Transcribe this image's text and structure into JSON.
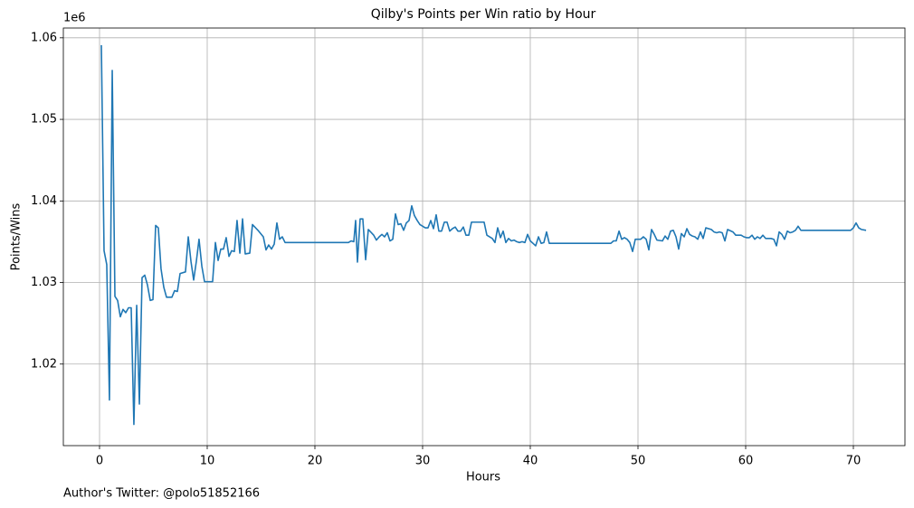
{
  "chart_data": {
    "type": "line",
    "title": "Qilby's Points per Win ratio by Hour",
    "xlabel": "Hours",
    "ylabel": "Points/Wins",
    "y_offset_label": "1e6",
    "annotation": "Author's Twitter: @polo51852166",
    "xlim": [
      -3.36,
      74.79
    ],
    "ylim": [
      1.01,
      1.0612
    ],
    "xticks": [
      0,
      10,
      20,
      30,
      40,
      50,
      60,
      70
    ],
    "yticks": [
      1.02,
      1.03,
      1.04,
      1.05,
      1.06
    ],
    "grid": true,
    "x": [
      0.17,
      0.42,
      0.67,
      0.92,
      1.18,
      1.43,
      1.68,
      1.93,
      2.18,
      2.44,
      2.69,
      2.94,
      3.19,
      3.45,
      3.7,
      3.95,
      4.2,
      4.45,
      4.71,
      4.96,
      5.21,
      5.46,
      5.71,
      5.97,
      6.22,
      6.72,
      6.97,
      7.23,
      7.48,
      7.98,
      8.24,
      8.49,
      8.74,
      8.99,
      9.24,
      9.5,
      9.75,
      10.5,
      10.76,
      11.01,
      11.26,
      11.51,
      11.76,
      12.02,
      12.27,
      12.52,
      12.77,
      13.03,
      13.28,
      13.53,
      13.95,
      14.2,
      14.71,
      15.21,
      15.46,
      15.71,
      15.97,
      16.22,
      16.47,
      16.72,
      16.97,
      17.23,
      23.11,
      23.36,
      23.61,
      23.78,
      23.95,
      24.2,
      24.45,
      24.71,
      24.96,
      25.46,
      25.71,
      25.97,
      26.22,
      26.47,
      26.72,
      26.97,
      27.23,
      27.48,
      27.73,
      27.98,
      28.24,
      28.49,
      28.74,
      28.99,
      29.24,
      29.5,
      29.75,
      30.25,
      30.5,
      30.76,
      31.01,
      31.26,
      31.51,
      31.76,
      32.02,
      32.27,
      32.52,
      32.77,
      33.03,
      33.28,
      33.53,
      33.78,
      34.03,
      34.29,
      34.54,
      35.71,
      35.97,
      36.47,
      36.72,
      36.97,
      37.23,
      37.48,
      37.73,
      37.98,
      38.24,
      38.49,
      38.74,
      38.99,
      39.24,
      39.5,
      39.75,
      40.0,
      40.25,
      40.5,
      40.76,
      41.01,
      41.26,
      41.51,
      41.76,
      47.48,
      47.73,
      47.98,
      48.24,
      48.49,
      48.74,
      48.99,
      49.24,
      49.5,
      49.75,
      50.25,
      50.5,
      50.76,
      51.01,
      51.26,
      51.51,
      51.76,
      52.27,
      52.52,
      52.77,
      53.03,
      53.28,
      53.53,
      53.78,
      54.03,
      54.29,
      54.54,
      54.79,
      55.04,
      55.29,
      55.55,
      55.8,
      56.05,
      56.3,
      56.81,
      57.06,
      57.31,
      57.56,
      57.82,
      58.07,
      58.32,
      58.82,
      59.08,
      59.58,
      59.83,
      60.08,
      60.34,
      60.59,
      60.84,
      61.09,
      61.34,
      61.6,
      61.85,
      62.35,
      62.61,
      62.86,
      63.11,
      63.36,
      63.61,
      63.87,
      64.12,
      64.37,
      64.62,
      64.87,
      65.13,
      69.75,
      70.0,
      70.25,
      70.5,
      70.76,
      71.18
    ],
    "series": [
      {
        "color": "#1f77b4",
        "values": [
          1.0591,
          1.0339,
          1.0322,
          1.0156,
          1.056,
          1.0283,
          1.0278,
          1.0258,
          1.0267,
          1.0263,
          1.0269,
          1.0269,
          1.0126,
          1.0272,
          1.0151,
          1.0306,
          1.0309,
          1.0297,
          1.0278,
          1.0279,
          1.037,
          1.0367,
          1.0317,
          1.0294,
          1.0282,
          1.0282,
          1.029,
          1.0289,
          1.0311,
          1.0313,
          1.0356,
          1.0326,
          1.0303,
          1.0326,
          1.0353,
          1.032,
          1.0301,
          1.0301,
          1.0349,
          1.0327,
          1.0341,
          1.0341,
          1.0355,
          1.0332,
          1.0339,
          1.0338,
          1.0376,
          1.0336,
          1.0378,
          1.0335,
          1.0336,
          1.0371,
          1.0364,
          1.0356,
          1.034,
          1.0346,
          1.0341,
          1.0347,
          1.0373,
          1.0353,
          1.0356,
          1.0349,
          1.0349,
          1.0351,
          1.035,
          1.0376,
          1.0325,
          1.0378,
          1.0378,
          1.0328,
          1.0365,
          1.0358,
          1.0352,
          1.0356,
          1.0359,
          1.0356,
          1.0361,
          1.0351,
          1.0353,
          1.0384,
          1.0371,
          1.0372,
          1.0364,
          1.0373,
          1.0376,
          1.0394,
          1.0382,
          1.0376,
          1.0371,
          1.0367,
          1.0367,
          1.0376,
          1.0366,
          1.0383,
          1.0363,
          1.0363,
          1.0374,
          1.0374,
          1.0363,
          1.0366,
          1.0368,
          1.0363,
          1.0363,
          1.0368,
          1.0358,
          1.0358,
          1.0374,
          1.0374,
          1.0358,
          1.0354,
          1.0349,
          1.0367,
          1.0355,
          1.0363,
          1.0349,
          1.0354,
          1.0351,
          1.0352,
          1.035,
          1.0349,
          1.035,
          1.0349,
          1.0359,
          1.0351,
          1.0348,
          1.0345,
          1.0356,
          1.0348,
          1.0349,
          1.0362,
          1.0348,
          1.0348,
          1.0351,
          1.0351,
          1.0363,
          1.0353,
          1.0355,
          1.0353,
          1.0349,
          1.0338,
          1.0353,
          1.0353,
          1.0356,
          1.0353,
          1.034,
          1.0365,
          1.0359,
          1.0352,
          1.0351,
          1.0357,
          1.0353,
          1.0363,
          1.0364,
          1.0356,
          1.0341,
          1.036,
          1.0356,
          1.0366,
          1.0359,
          1.0357,
          1.0356,
          1.0353,
          1.0362,
          1.0354,
          1.0367,
          1.0365,
          1.0362,
          1.0361,
          1.0362,
          1.0361,
          1.0351,
          1.0365,
          1.0362,
          1.0358,
          1.0358,
          1.0356,
          1.0355,
          1.0355,
          1.0358,
          1.0353,
          1.0356,
          1.0354,
          1.0358,
          1.0354,
          1.0354,
          1.0353,
          1.0345,
          1.0362,
          1.0359,
          1.0353,
          1.0363,
          1.0361,
          1.0362,
          1.0364,
          1.0369,
          1.0364,
          1.0364,
          1.0367,
          1.0373,
          1.0367,
          1.0365,
          1.0364
        ]
      }
    ]
  }
}
